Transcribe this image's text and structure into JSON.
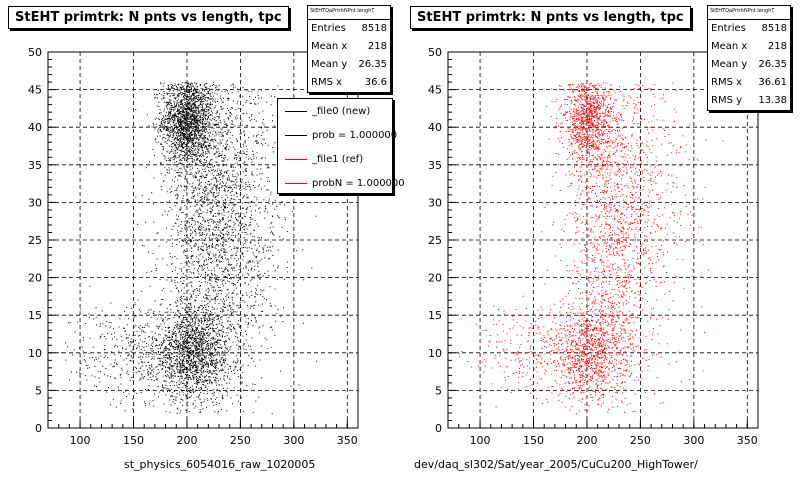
{
  "chart_data": [
    {
      "type": "scatter",
      "title": "StEHT primtrk: N pnts vs length, tpc",
      "xlabel": "st_physics_6054016_raw_1020005",
      "ylabel": "",
      "xlim": [
        70,
        360
      ],
      "ylim": [
        0,
        50
      ],
      "xticks": [
        100,
        150,
        200,
        250,
        300,
        350
      ],
      "yticks": [
        0,
        5,
        10,
        15,
        20,
        25,
        30,
        35,
        40,
        45,
        50
      ],
      "grid": true,
      "marker_color": "#000000",
      "stats": {
        "name": "StEHTQaPrtrkNPnt.lenghT",
        "rows": [
          {
            "label": "Entries",
            "value": "8518"
          },
          {
            "label": "Mean x",
            "value": "218"
          },
          {
            "label": "Mean y",
            "value": "26.35"
          },
          {
            "label": "RMS x",
            "value": "36.6"
          }
        ]
      },
      "legend": {
        "placement": "top-right",
        "entries": [
          {
            "label": "_file0 (new)",
            "color": "#000000"
          },
          {
            "label": "prob = 1.000000",
            "color": "#000000"
          },
          {
            "label": "_file1 (ref)",
            "color": "#ff0000"
          },
          {
            "label": "probN = 1.000000",
            "color": "#ff0000"
          }
        ]
      },
      "clusters": [
        {
          "cx": 200,
          "cy": 41,
          "sx": 12,
          "sy": 3,
          "n": 1800
        },
        {
          "cx": 205,
          "cy": 10,
          "sx": 18,
          "sy": 3,
          "n": 1500
        },
        {
          "cx": 222,
          "cy": 27,
          "sx": 22,
          "sy": 12,
          "n": 2200
        },
        {
          "cx": 160,
          "cy": 10,
          "sx": 35,
          "sy": 3.5,
          "n": 500
        },
        {
          "cx": 255,
          "cy": 30,
          "sx": 25,
          "sy": 10,
          "n": 600
        }
      ],
      "x_range": [
        80,
        330
      ],
      "y_range": [
        2,
        46
      ]
    },
    {
      "type": "scatter",
      "title": "StEHT primtrk: N pnts vs length, tpc",
      "xlabel": "dev/daq_sl302/Sat/year_2005/CuCu200_HighTower/",
      "ylabel": "",
      "xlim": [
        70,
        360
      ],
      "ylim": [
        0,
        50
      ],
      "xticks": [
        100,
        150,
        200,
        250,
        300,
        350
      ],
      "yticks": [
        0,
        5,
        10,
        15,
        20,
        25,
        30,
        35,
        40,
        45,
        50
      ],
      "grid": true,
      "marker_color": "#ff0000",
      "stats": {
        "name": "StEHTQaPrtrkNPnt.lenghT",
        "rows": [
          {
            "label": "Entries",
            "value": "8518"
          },
          {
            "label": "Mean x",
            "value": "218"
          },
          {
            "label": "Mean y",
            "value": "26.35"
          },
          {
            "label": "RMS x",
            "value": "36.61"
          },
          {
            "label": "RMS y",
            "value": "13.38"
          }
        ]
      },
      "clusters": [
        {
          "cx": 200,
          "cy": 41,
          "sx": 12,
          "sy": 3,
          "n": 1000
        },
        {
          "cx": 205,
          "cy": 10,
          "sx": 18,
          "sy": 3,
          "n": 900
        },
        {
          "cx": 222,
          "cy": 27,
          "sx": 22,
          "sy": 12,
          "n": 1400
        },
        {
          "cx": 160,
          "cy": 10,
          "sx": 35,
          "sy": 3.5,
          "n": 350
        },
        {
          "cx": 255,
          "cy": 30,
          "sx": 25,
          "sy": 10,
          "n": 400
        }
      ],
      "x_range": [
        80,
        330
      ],
      "y_range": [
        2,
        46
      ]
    }
  ]
}
